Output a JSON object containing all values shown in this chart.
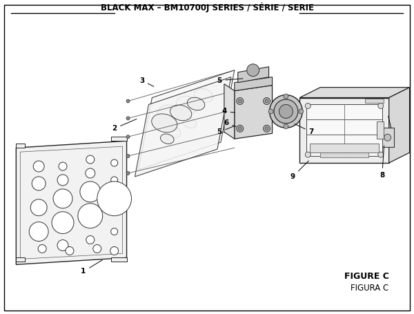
{
  "title": "BLACK MAX – BM10700J SERIES / SÉRIE / SERIE",
  "figure_label": "FIGURE C",
  "figura_label": "FIGURA C",
  "bg_color": "#ffffff",
  "text_color": "#000000",
  "title_fontsize": 8.5,
  "label_fontsize": 7.5,
  "figure_label_fontsize": 9
}
